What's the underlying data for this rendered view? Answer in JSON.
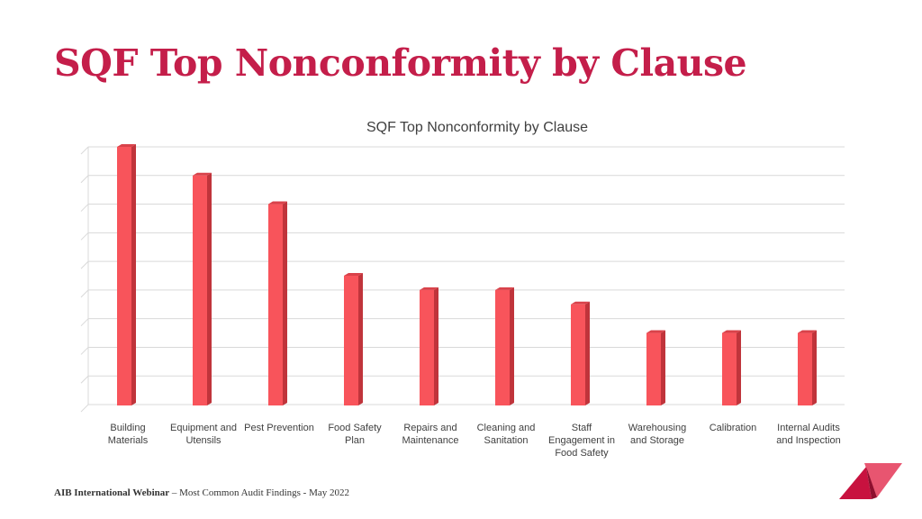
{
  "slide": {
    "title": "SQF Top Nonconformity by Clause",
    "footer_org": "AIB International Webinar",
    "footer_rest": " – Most Common Audit Findings  - May 2022"
  },
  "colors": {
    "title": "#c41e4a",
    "bar_front": "#f8545b",
    "bar_side": "#c0343b",
    "bar_top": "#d9424a",
    "grid": "#d9d9d9",
    "logo_dark": "#c8123f",
    "logo_light": "#e85570"
  },
  "logo": {
    "icon": "triangle-logo-icon"
  },
  "chart_data": {
    "type": "bar",
    "title": "SQF Top Nonconformity by Clause",
    "xlabel": "",
    "ylabel": "",
    "ylim": [
      0,
      9
    ],
    "grid": true,
    "legend": "none",
    "value_axis_labels_visible": false,
    "categories": [
      [
        "Building",
        "Materials"
      ],
      [
        "Equipment and",
        "Utensils"
      ],
      [
        "Pest Prevention"
      ],
      [
        "Food Safety",
        "Plan"
      ],
      [
        "Repairs and",
        "Maintenance"
      ],
      [
        "Cleaning and",
        "Sanitation"
      ],
      [
        "Staff",
        "Engagement in",
        "Food Safety"
      ],
      [
        "Warehousing",
        "and Storage"
      ],
      [
        "Calibration"
      ],
      [
        "Internal Audits",
        "and Inspection"
      ]
    ],
    "values": [
      9,
      8,
      7,
      4.5,
      4,
      4,
      3.5,
      2.5,
      2.5,
      2.5
    ]
  }
}
